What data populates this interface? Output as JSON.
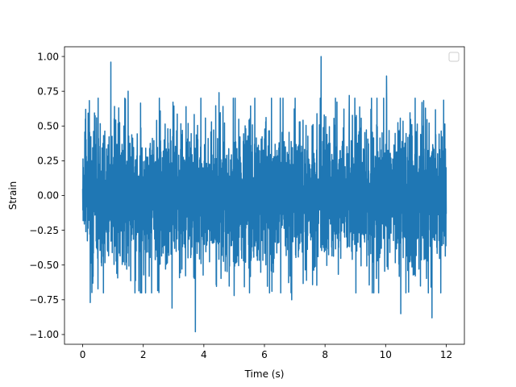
{
  "chart_data": {
    "type": "line",
    "title": "",
    "xlabel": "Time (s)",
    "ylabel": "Strain",
    "xlim": [
      -0.6,
      12.6
    ],
    "ylim": [
      -1.07,
      1.07
    ],
    "xticks": [
      0,
      2,
      4,
      6,
      8,
      10,
      12
    ],
    "xtick_labels": [
      "0",
      "2",
      "4",
      "6",
      "8",
      "10",
      "12"
    ],
    "yticks": [
      -1.0,
      -0.75,
      -0.5,
      -0.25,
      0.0,
      0.25,
      0.5,
      0.75,
      1.0
    ],
    "ytick_labels": [
      "−1.00",
      "−0.75",
      "−0.50",
      "−0.25",
      "0.00",
      "0.25",
      "0.50",
      "0.75",
      "1.00"
    ],
    "grid": false,
    "legend": {
      "placement": "top-right",
      "entries": []
    },
    "series": [
      {
        "color": "#1f77b4",
        "x_range": [
          0,
          12
        ],
        "typical_amplitude": 0.45,
        "notable_points": [
          {
            "x": 0.93,
            "y": 0.96
          },
          {
            "x": 7.87,
            "y": 1.0
          },
          {
            "x": 3.72,
            "y": -0.98
          },
          {
            "x": 11.53,
            "y": -0.88
          },
          {
            "x": 10.5,
            "y": -0.85
          },
          {
            "x": 2.95,
            "y": -0.81
          },
          {
            "x": 0.25,
            "y": -0.77
          },
          {
            "x": 10.03,
            "y": 0.86
          },
          {
            "x": 0.1,
            "y": 0.62
          },
          {
            "x": 1.5,
            "y": 0.75
          },
          {
            "x": 4.5,
            "y": 0.74
          },
          {
            "x": 8.8,
            "y": 0.72
          },
          {
            "x": 11.2,
            "y": 0.67
          },
          {
            "x": 5.0,
            "y": -0.72
          },
          {
            "x": 6.9,
            "y": -0.75
          }
        ]
      }
    ]
  }
}
